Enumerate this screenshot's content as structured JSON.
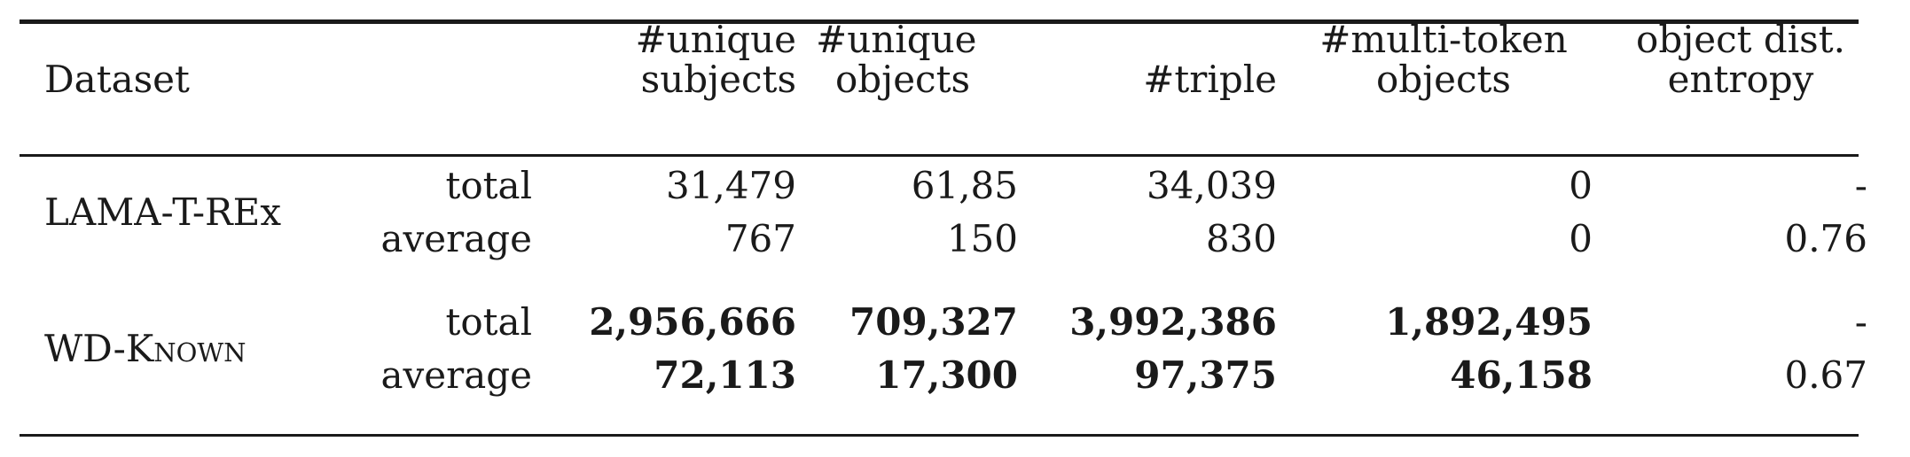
{
  "table": {
    "headers": {
      "dataset": "Dataset",
      "unique_subjects": [
        "#unique",
        "subjects"
      ],
      "unique_objects": [
        "#unique",
        "objects"
      ],
      "triple": "#triple",
      "multi_token_objects": [
        "#multi-token",
        "objects"
      ],
      "entropy": [
        "object dist.",
        "entropy"
      ]
    },
    "rows": [
      {
        "dataset": "LAMA-T-REx",
        "total": {
          "label": "total",
          "unique_subjects": "31,479",
          "unique_objects": "61,85",
          "triple": "34,039",
          "multi_token_objects": "0",
          "entropy": "-"
        },
        "average": {
          "label": "average",
          "unique_subjects": "767",
          "unique_objects": "150",
          "triple": "830",
          "multi_token_objects": "0",
          "entropy": "0.76"
        }
      },
      {
        "dataset": "WD-Known",
        "total": {
          "label": "total",
          "unique_subjects": "2,956,666",
          "unique_objects": "709,327",
          "triple": "3,992,386",
          "multi_token_objects": "1,892,495",
          "entropy": "-"
        },
        "average": {
          "label": "average",
          "unique_subjects": "72,113",
          "unique_objects": "17,300",
          "triple": "97,375",
          "multi_token_objects": "46,158",
          "entropy": "0.67"
        }
      }
    ]
  }
}
